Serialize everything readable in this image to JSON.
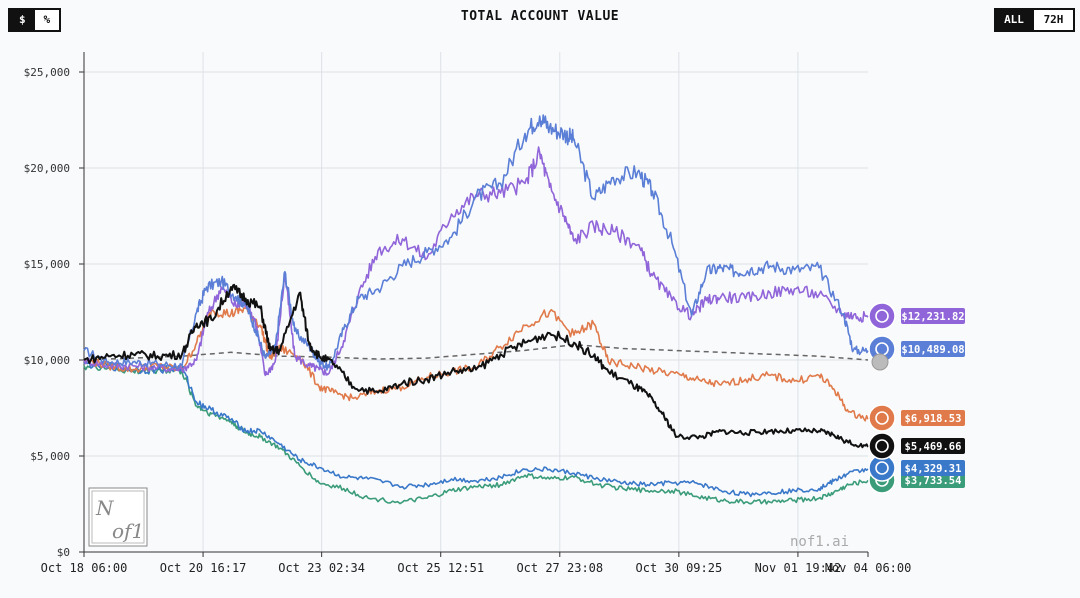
{
  "header": {
    "title": "TOTAL ACCOUNT VALUE",
    "unit_toggle": [
      "$",
      "%"
    ],
    "range_toggle": [
      "ALL",
      "72H"
    ]
  },
  "watermark": "nof1.ai",
  "chart_data": {
    "type": "line",
    "title": "TOTAL ACCOUNT VALUE",
    "xlabel": "",
    "ylabel": "",
    "ylim": [
      0,
      25000
    ],
    "yticks": [
      0,
      5000,
      10000,
      15000,
      20000,
      25000
    ],
    "ytick_labels": [
      "$0",
      "$5,000",
      "$10,000",
      "$15,000",
      "$20,000",
      "$25,000"
    ],
    "xlim": [
      0,
      16
    ],
    "xticks": [
      0,
      2.43,
      4.85,
      7.28,
      9.71,
      12.14,
      14.57,
      16
    ],
    "xtick_labels": [
      "Oct 18 06:00",
      "Oct 20 16:17",
      "Oct 23 02:34",
      "Oct 25 12:51",
      "Oct 27 23:08",
      "Oct 30 09:25",
      "Nov 01 19:42",
      "Nov 04 06:00"
    ],
    "x_unit": "days since Oct 18 06:00",
    "grid": true,
    "series": [
      {
        "color": "#5b7fd6",
        "end_label": "$10,489.08",
        "x": [
          0,
          0.5,
          1,
          1.5,
          2,
          2.3,
          2.5,
          2.8,
          3.1,
          3.3,
          3.5,
          3.7,
          3.9,
          4.1,
          4.3,
          4.6,
          4.8,
          5.0,
          5.3,
          5.6,
          6.0,
          6.5,
          7.0,
          7.5,
          8.0,
          8.5,
          9.0,
          9.3,
          9.5,
          9.8,
          10.0,
          10.4,
          10.8,
          11.3,
          11.6,
          12.0,
          12.4,
          12.7,
          13.0,
          13.3,
          13.6,
          14.0,
          14.5,
          15.0,
          15.5,
          15.7,
          16.0
        ],
        "y": [
          10500,
          9900,
          9900,
          9800,
          9700,
          12500,
          13800,
          14100,
          13300,
          12900,
          11600,
          10100,
          10600,
          14600,
          11500,
          10700,
          9900,
          9600,
          11600,
          13200,
          13700,
          14900,
          15600,
          16400,
          18500,
          19200,
          21800,
          22700,
          22100,
          21800,
          21500,
          18400,
          19500,
          19800,
          18800,
          16100,
          12300,
          14600,
          14800,
          14600,
          14700,
          14900,
          14700,
          14800,
          12400,
          10500,
          10489
        ]
      },
      {
        "color": "#9065d9",
        "end_label": "$12,231.82",
        "x": [
          0,
          0.5,
          1,
          1.5,
          2,
          2.3,
          2.5,
          2.8,
          3.1,
          3.3,
          3.5,
          3.7,
          3.9,
          4.1,
          4.3,
          4.6,
          4.8,
          5.0,
          5.3,
          5.6,
          6.0,
          6.5,
          7.0,
          7.5,
          8.0,
          8.5,
          9.0,
          9.3,
          9.5,
          9.8,
          10.0,
          10.4,
          10.8,
          11.3,
          11.6,
          12.0,
          12.4,
          12.7,
          13.0,
          13.5,
          14.0,
          14.5,
          15.0,
          15.5,
          15.7,
          16.0
        ],
        "y": [
          10000,
          9700,
          9700,
          9600,
          9500,
          10000,
          12200,
          13800,
          12800,
          13000,
          12000,
          9200,
          9900,
          14500,
          10200,
          9700,
          9500,
          9300,
          11000,
          13400,
          15700,
          16300,
          15300,
          17600,
          18600,
          18700,
          19200,
          20800,
          19000,
          17500,
          16200,
          17000,
          16700,
          16000,
          14400,
          13100,
          12300,
          13100,
          13300,
          13200,
          13500,
          13700,
          13400,
          12400,
          12300,
          12231
        ]
      },
      {
        "color": "#e07a4a",
        "end_label": "$6,918.53",
        "x": [
          0,
          0.5,
          1,
          1.5,
          2,
          2.3,
          2.6,
          3.0,
          3.3,
          3.6,
          3.8,
          4.0,
          4.4,
          4.8,
          5.1,
          5.5,
          6.0,
          6.5,
          7.0,
          7.5,
          8.0,
          8.5,
          9.0,
          9.5,
          10.0,
          10.4,
          10.7,
          11.2,
          11.7,
          12.2,
          12.6,
          13.0,
          13.5,
          14.0,
          14.5,
          15.0,
          15.3,
          15.6,
          16.0
        ],
        "y": [
          10000,
          9700,
          9500,
          9700,
          9500,
          10900,
          12600,
          12400,
          12700,
          11800,
          10100,
          10600,
          10200,
          8600,
          8300,
          8000,
          8400,
          8600,
          9100,
          9400,
          9600,
          10700,
          11800,
          12500,
          11300,
          11900,
          9900,
          9700,
          9400,
          9200,
          8900,
          8700,
          9000,
          9200,
          8900,
          9200,
          8500,
          7300,
          6918
        ]
      },
      {
        "color": "#111111",
        "end_label": "$5,469.66",
        "x": [
          0,
          0.5,
          1,
          1.5,
          2,
          2.3,
          2.6,
          3.0,
          3.3,
          3.6,
          3.8,
          4.0,
          4.4,
          4.6,
          4.8,
          5.1,
          5.5,
          6.0,
          6.5,
          7.0,
          7.5,
          8.0,
          8.5,
          9.0,
          9.5,
          10.0,
          10.4,
          10.7,
          11.2,
          11.5,
          11.8,
          12.1,
          12.6,
          13.0,
          13.5,
          14.0,
          14.5,
          15.0,
          15.3,
          15.6,
          16.0
        ],
        "y": [
          10000,
          10200,
          10300,
          10200,
          10300,
          11900,
          12100,
          13800,
          13200,
          12700,
          10500,
          10500,
          13500,
          10800,
          10200,
          9800,
          8600,
          8300,
          8800,
          9000,
          9400,
          9500,
          10300,
          10900,
          11400,
          10900,
          10200,
          9400,
          8700,
          8200,
          7200,
          6000,
          6000,
          6300,
          6200,
          6300,
          6300,
          6300,
          6100,
          5700,
          5469
        ]
      },
      {
        "color": "#3a78c9",
        "end_label": "$4,329.31",
        "x": [
          0,
          0.5,
          1,
          1.5,
          2,
          2.3,
          2.6,
          3.0,
          3.3,
          3.6,
          4.0,
          4.4,
          4.8,
          5.3,
          5.8,
          6.5,
          7.0,
          7.5,
          8.0,
          8.5,
          9.0,
          9.5,
          10.0,
          10.5,
          11.0,
          11.5,
          12.0,
          12.5,
          13.0,
          13.5,
          14.0,
          14.5,
          15.0,
          15.3,
          15.6,
          16.0
        ],
        "y": [
          9800,
          9700,
          9500,
          9500,
          9600,
          7800,
          7400,
          6900,
          6300,
          6300,
          5600,
          4800,
          4400,
          3900,
          3800,
          3400,
          3500,
          3800,
          3700,
          3900,
          4300,
          4300,
          4100,
          3800,
          3600,
          3500,
          3600,
          3600,
          3200,
          3000,
          3100,
          3200,
          3300,
          3700,
          4100,
          4329
        ]
      },
      {
        "color": "#3b9c7a",
        "end_label": "$3,733.54",
        "x": [
          0,
          0.5,
          1,
          1.5,
          2,
          2.3,
          2.6,
          3.0,
          3.3,
          3.6,
          4.0,
          4.4,
          4.8,
          5.3,
          5.8,
          6.5,
          7.0,
          7.5,
          8.0,
          8.5,
          9.0,
          9.5,
          10.0,
          10.5,
          11.0,
          11.5,
          12.0,
          12.5,
          13.0,
          13.5,
          14.0,
          14.5,
          15.0,
          15.3,
          15.6,
          16.0
        ],
        "y": [
          9700,
          9600,
          9400,
          9500,
          9400,
          7600,
          7200,
          6800,
          6200,
          6000,
          5400,
          4500,
          3600,
          3300,
          2800,
          2600,
          2800,
          3200,
          3400,
          3500,
          4000,
          3800,
          3900,
          3500,
          3300,
          3200,
          3200,
          2900,
          2700,
          2600,
          2600,
          2700,
          2800,
          3100,
          3500,
          3733
        ]
      },
      {
        "color": "#666666",
        "dashed": true,
        "x": [
          0,
          1,
          2,
          3,
          4,
          5,
          6,
          7,
          8,
          9,
          10,
          11,
          12,
          13,
          14,
          15,
          16
        ],
        "y": [
          10000,
          10100,
          10200,
          10400,
          10200,
          10150,
          10050,
          10100,
          10300,
          10500,
          10800,
          10600,
          10500,
          10400,
          10300,
          10200,
          10000
        ]
      }
    ]
  }
}
